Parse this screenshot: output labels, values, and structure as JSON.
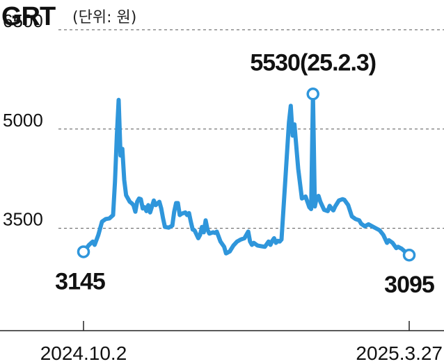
{
  "chart_data": {
    "type": "line",
    "title": "GRT",
    "subtitle": "(단위: 원)",
    "xlabel": "",
    "ylabel": "",
    "ylim": [
      2100,
      6950
    ],
    "yticks": [
      {
        "value": 6500,
        "label": "6500"
      },
      {
        "value": 5000,
        "label": "5000"
      },
      {
        "value": 3500,
        "label": "3500"
      }
    ],
    "xticks": [
      {
        "x": "2024-10-02",
        "label": "2024.10.2"
      },
      {
        "x": "2025-03-27",
        "label": "2025.3.27"
      }
    ],
    "x_range": [
      "2024-10-02",
      "2025-03-27"
    ],
    "grid": true,
    "legend": "none",
    "line_color": "#2f96db",
    "marker_color": "#2f96db",
    "series": [
      {
        "values": [
          [
            "2024-10-02",
            3145
          ],
          [
            "2024-10-05",
            3250
          ],
          [
            "2024-10-07",
            3300
          ],
          [
            "2024-10-08",
            3250
          ],
          [
            "2024-10-10",
            3400
          ],
          [
            "2024-10-12",
            3600
          ],
          [
            "2024-10-14",
            3640
          ],
          [
            "2024-10-16",
            3650
          ],
          [
            "2024-10-18",
            3700
          ],
          [
            "2024-10-19",
            4200
          ],
          [
            "2024-10-20",
            4900
          ],
          [
            "2024-10-21",
            5440
          ],
          [
            "2024-10-22",
            4600
          ],
          [
            "2024-10-23",
            4700
          ],
          [
            "2024-10-24",
            4230
          ],
          [
            "2024-10-25",
            4000
          ],
          [
            "2024-10-27",
            3900
          ],
          [
            "2024-10-28",
            3880
          ],
          [
            "2024-10-29",
            3850
          ],
          [
            "2024-10-30",
            3750
          ],
          [
            "2024-10-31",
            3900
          ],
          [
            "2024-11-01",
            3950
          ],
          [
            "2024-11-02",
            3940
          ],
          [
            "2024-11-03",
            3800
          ],
          [
            "2024-11-04",
            3820
          ],
          [
            "2024-11-05",
            3760
          ],
          [
            "2024-11-06",
            3850
          ],
          [
            "2024-11-07",
            3740
          ],
          [
            "2024-11-08",
            3830
          ],
          [
            "2024-11-09",
            3920
          ],
          [
            "2024-11-10",
            3850
          ],
          [
            "2024-11-12",
            3900
          ],
          [
            "2024-11-13",
            3800
          ],
          [
            "2024-11-14",
            3650
          ],
          [
            "2024-11-15",
            3520
          ],
          [
            "2024-11-17",
            3510
          ],
          [
            "2024-11-19",
            3540
          ],
          [
            "2024-11-20",
            3750
          ],
          [
            "2024-11-21",
            3880
          ],
          [
            "2024-11-22",
            3880
          ],
          [
            "2024-11-23",
            3700
          ],
          [
            "2024-11-24",
            3720
          ],
          [
            "2024-11-26",
            3740
          ],
          [
            "2024-11-27",
            3700
          ],
          [
            "2024-11-28",
            3730
          ],
          [
            "2024-11-29",
            3600
          ],
          [
            "2024-11-30",
            3480
          ],
          [
            "2024-12-01",
            3470
          ],
          [
            "2024-12-03",
            3350
          ],
          [
            "2024-12-04",
            3400
          ],
          [
            "2024-12-05",
            3520
          ],
          [
            "2024-12-06",
            3440
          ],
          [
            "2024-12-07",
            3620
          ],
          [
            "2024-12-08",
            3480
          ],
          [
            "2024-12-09",
            3420
          ],
          [
            "2024-12-11",
            3440
          ],
          [
            "2024-12-12",
            3430
          ],
          [
            "2024-12-13",
            3450
          ],
          [
            "2024-12-15",
            3300
          ],
          [
            "2024-12-17",
            3220
          ],
          [
            "2024-12-18",
            3120
          ],
          [
            "2024-12-20",
            3150
          ],
          [
            "2024-12-22",
            3240
          ],
          [
            "2024-12-24",
            3300
          ],
          [
            "2024-12-26",
            3330
          ],
          [
            "2024-12-28",
            3350
          ],
          [
            "2024-12-30",
            3450
          ],
          [
            "2024-12-31",
            3300
          ],
          [
            "2025-01-01",
            3250
          ],
          [
            "2025-01-02",
            3280
          ],
          [
            "2025-01-04",
            3240
          ],
          [
            "2025-01-06",
            3230
          ],
          [
            "2025-01-08",
            3220
          ],
          [
            "2025-01-10",
            3300
          ],
          [
            "2025-01-11",
            3250
          ],
          [
            "2025-01-12",
            3310
          ],
          [
            "2025-01-13",
            3350
          ],
          [
            "2025-01-14",
            3280
          ],
          [
            "2025-01-15",
            3310
          ],
          [
            "2025-01-16",
            3300
          ],
          [
            "2025-01-17",
            3330
          ],
          [
            "2025-01-19",
            4200
          ],
          [
            "2025-01-21",
            5100
          ],
          [
            "2025-01-22",
            5350
          ],
          [
            "2025-02-03",
            5530
          ],
          [
            "2025-01-23",
            4900
          ],
          [
            "2025-01-24",
            5070
          ],
          [
            "2025-01-26",
            4400
          ],
          [
            "2025-01-28",
            3950
          ],
          [
            "2025-01-30",
            3980
          ],
          [
            "2025-02-01",
            3820
          ],
          [
            "2025-02-02",
            3790
          ],
          [
            "2025-02-04",
            3830
          ],
          [
            "2025-02-05",
            3960
          ],
          [
            "2025-02-06",
            3990
          ],
          [
            "2025-02-07",
            3900
          ],
          [
            "2025-02-09",
            3780
          ],
          [
            "2025-02-11",
            3760
          ],
          [
            "2025-02-12",
            3840
          ],
          [
            "2025-02-13",
            3800
          ],
          [
            "2025-02-14",
            3770
          ],
          [
            "2025-02-15",
            3830
          ],
          [
            "2025-02-17",
            3920
          ],
          [
            "2025-02-19",
            3940
          ],
          [
            "2025-02-20",
            3930
          ],
          [
            "2025-02-22",
            3850
          ],
          [
            "2025-02-24",
            3680
          ],
          [
            "2025-02-26",
            3640
          ],
          [
            "2025-02-28",
            3620
          ],
          [
            "2025-03-01",
            3570
          ],
          [
            "2025-03-03",
            3530
          ],
          [
            "2025-03-05",
            3560
          ],
          [
            "2025-03-07",
            3530
          ],
          [
            "2025-03-09",
            3500
          ],
          [
            "2025-03-11",
            3470
          ],
          [
            "2025-03-13",
            3400
          ],
          [
            "2025-03-15",
            3280
          ],
          [
            "2025-03-16",
            3320
          ],
          [
            "2025-03-18",
            3280
          ],
          [
            "2025-03-20",
            3200
          ],
          [
            "2025-03-21",
            3220
          ],
          [
            "2025-03-23",
            3190
          ],
          [
            "2025-03-25",
            3140
          ],
          [
            "2025-03-27",
            3095
          ]
        ]
      }
    ],
    "annotations": [
      {
        "x": "2024-10-02",
        "y": 3145,
        "text": "3145",
        "position": "below"
      },
      {
        "x": "2025-02-03",
        "y": 5530,
        "text": "5530(25.2.3)",
        "position": "above"
      },
      {
        "x": "2025-03-27",
        "y": 3095,
        "text": "3095",
        "position": "below"
      }
    ]
  }
}
